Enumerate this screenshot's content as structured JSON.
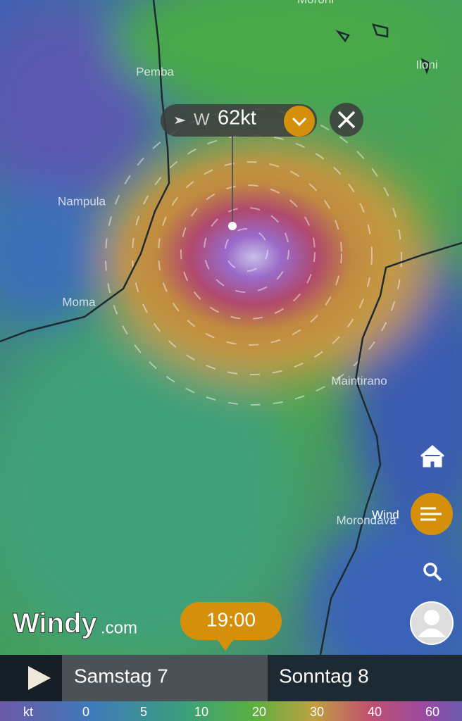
{
  "map": {
    "labels": [
      "Moroni",
      "Iloni",
      "Pemba",
      "Nampula",
      "Moma",
      "Maintirano",
      "Morondava"
    ]
  },
  "popup": {
    "direction": "W",
    "speed": "62kt"
  },
  "sidebar": {
    "layer_label": "Wind"
  },
  "logo": {
    "brand": "Windy",
    "suffix": ".com"
  },
  "timeline": {
    "current_time": "19:00",
    "days": [
      "Samstag 7",
      "Sonntag 8"
    ]
  },
  "legend": {
    "unit": "kt",
    "ticks": [
      0,
      5,
      10,
      20,
      30,
      40,
      60
    ]
  }
}
